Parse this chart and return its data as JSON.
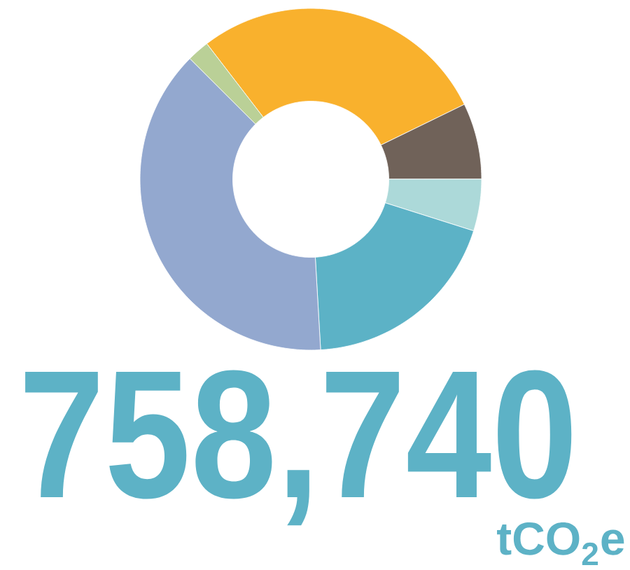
{
  "chart_data": {
    "type": "donut",
    "title": "758,740",
    "subtitle": "tCO$_{2}$e",
    "categories": [
      null,
      null,
      null,
      null,
      null,
      null
    ],
    "values": [
      28.2,
      7.2,
      4.9,
      19.2,
      38.4,
      2.1
    ],
    "colors": [
      "#f9b12d",
      "#706259",
      "#acd9d9",
      "#5cb2c6",
      "#93a8cf",
      "#bad097"
    ]
  }
}
